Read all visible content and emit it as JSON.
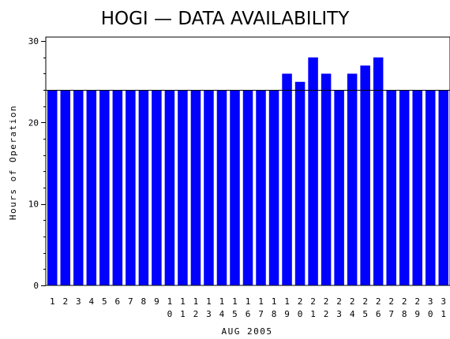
{
  "chart_data": {
    "type": "bar",
    "title": "HOGI — DATA AVAILABILITY",
    "xlabel": "AUG 2005",
    "ylabel": "Hours of Operation",
    "ylim": [
      0,
      30.5
    ],
    "yticks": [
      0,
      10,
      20,
      30
    ],
    "reference_line": 24,
    "grid": false,
    "categories": [
      "1",
      "2",
      "3",
      "4",
      "5",
      "6",
      "7",
      "8",
      "9",
      "10",
      "11",
      "12",
      "13",
      "14",
      "15",
      "16",
      "17",
      "18",
      "19",
      "20",
      "21",
      "22",
      "23",
      "24",
      "25",
      "26",
      "27",
      "28",
      "29",
      "30",
      "31"
    ],
    "values": [
      24,
      24,
      24,
      24,
      24,
      24,
      24,
      24,
      24,
      24,
      24,
      24,
      24,
      24,
      24,
      24,
      24,
      24,
      26,
      25,
      28,
      26,
      24,
      26,
      27,
      28,
      24,
      24,
      24,
      24,
      24
    ],
    "bar_color": "#0000ff",
    "line_color": "#000000"
  }
}
